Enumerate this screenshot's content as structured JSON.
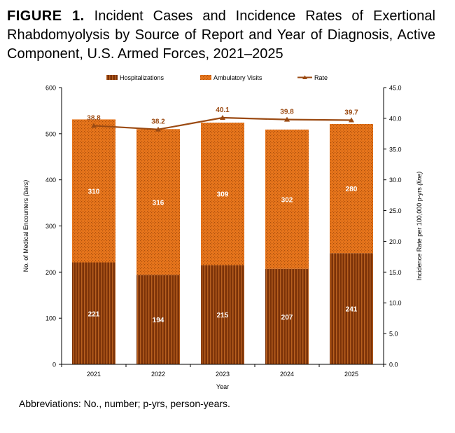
{
  "figure": {
    "label": "FIGURE 1.",
    "title": "Incident Cases and Incidence Rates of Exertional Rhabdomyolysis by Source of Report and Year of Diagnosis, Active Component, U.S. Armed Forces, 2021–2025",
    "footnote": "Abbreviations: No., number; p-yrs, person-years."
  },
  "chart_data": {
    "type": "bar",
    "stacked": true,
    "categories": [
      "2021",
      "2022",
      "2023",
      "2024",
      "2025"
    ],
    "series": [
      {
        "name": "Hospitalizations",
        "axis": "left",
        "values": [
          221,
          194,
          215,
          207,
          241
        ],
        "color": "#7B3208"
      },
      {
        "name": "Ambulatory Visits",
        "axis": "left",
        "values": [
          310,
          316,
          309,
          302,
          280
        ],
        "color": "#E8761C"
      }
    ],
    "line_series": [
      {
        "name": "Rate",
        "axis": "right",
        "values": [
          38.8,
          38.2,
          40.1,
          39.8,
          39.7
        ],
        "color": "#9B4A12"
      }
    ],
    "xlabel": "Year",
    "ylabel_left": {
      "main": "No. of Medical Encounters ",
      "italic": "(bars)"
    },
    "ylabel_right": {
      "main": "Incidence Rate per 100,000 p-yrs ",
      "italic": "(line)"
    },
    "ylim_left": [
      0,
      600
    ],
    "yticks_left": [
      0,
      100,
      200,
      300,
      400,
      500,
      600
    ],
    "ylim_right": [
      0,
      45
    ],
    "yticks_right": [
      "0.0",
      "5.0",
      "10.0",
      "15.0",
      "20.0",
      "25.0",
      "30.0",
      "35.0",
      "40.0",
      "45.0"
    ],
    "legend_position": "top",
    "grid": false
  }
}
